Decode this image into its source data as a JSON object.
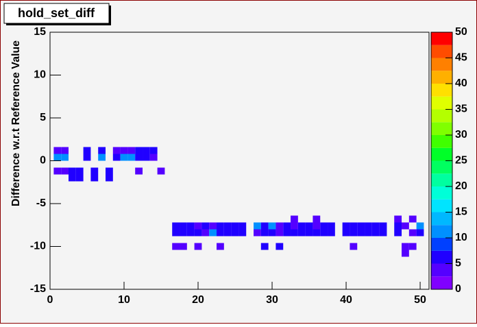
{
  "chart_data": {
    "type": "heatmap",
    "title": "hold_set_diff",
    "ylabel": "Difference w.r.t Reference Value",
    "xlim": [
      0,
      51.2
    ],
    "xticks": [
      0,
      10,
      20,
      30,
      40,
      50
    ],
    "ylim": [
      -15,
      15
    ],
    "yticks": [
      -15,
      -10,
      -5,
      0,
      5,
      10,
      15
    ],
    "zlim": [
      0,
      50
    ],
    "zticks": [
      0,
      5,
      10,
      15,
      20,
      25,
      30,
      35,
      40,
      45,
      50
    ],
    "palette": [
      "#8000ff",
      "#5400ff",
      "#2000ff",
      "#0040ff",
      "#0090ff",
      "#00b8ff",
      "#00e4ff",
      "#00ffd8",
      "#00ffa0",
      "#00ff60",
      "#00ff28",
      "#40ff00",
      "#80ff00",
      "#b4ff00",
      "#e0ff00",
      "#ffe000",
      "#ffb000",
      "#ff8000",
      "#ff4c00",
      "#ff0000"
    ],
    "cells": [
      {
        "x": 1,
        "y": 1.2,
        "z": 3
      },
      {
        "x": 2,
        "y": 1.2,
        "z": 3
      },
      {
        "x": 5,
        "y": 1.2,
        "z": 6
      },
      {
        "x": 7,
        "y": 1.2,
        "z": 6
      },
      {
        "x": 9,
        "y": 1.2,
        "z": 3
      },
      {
        "x": 10,
        "y": 1.2,
        "z": 3
      },
      {
        "x": 11,
        "y": 1.2,
        "z": 3
      },
      {
        "x": 12,
        "y": 1.2,
        "z": 6
      },
      {
        "x": 13,
        "y": 1.2,
        "z": 6
      },
      {
        "x": 14,
        "y": 1.2,
        "z": 6
      },
      {
        "x": 1,
        "y": 0.4,
        "z": 11
      },
      {
        "x": 2,
        "y": 0.4,
        "z": 11
      },
      {
        "x": 5,
        "y": 0.4,
        "z": 6
      },
      {
        "x": 7,
        "y": 0.4,
        "z": 11
      },
      {
        "x": 9,
        "y": 0.4,
        "z": 6
      },
      {
        "x": 10,
        "y": 0.4,
        "z": 11
      },
      {
        "x": 11,
        "y": 0.4,
        "z": 11
      },
      {
        "x": 12,
        "y": 0.4,
        "z": 6
      },
      {
        "x": 13,
        "y": 0.4,
        "z": 6
      },
      {
        "x": 14,
        "y": 0.4,
        "z": 4
      },
      {
        "x": 1,
        "y": -1.2,
        "z": 3
      },
      {
        "x": 2,
        "y": -1.2,
        "z": 3
      },
      {
        "x": 3,
        "y": -1.2,
        "z": 6
      },
      {
        "x": 4,
        "y": -1.2,
        "z": 6
      },
      {
        "x": 6,
        "y": -1.2,
        "z": 6
      },
      {
        "x": 8,
        "y": -1.2,
        "z": 6
      },
      {
        "x": 12,
        "y": -1.2,
        "z": 3
      },
      {
        "x": 15,
        "y": -1.2,
        "z": 3
      },
      {
        "x": 3,
        "y": -2.0,
        "z": 6
      },
      {
        "x": 4,
        "y": -2.0,
        "z": 6
      },
      {
        "x": 6,
        "y": -2.0,
        "z": 6
      },
      {
        "x": 8,
        "y": -2.0,
        "z": 6
      },
      {
        "x": 33,
        "y": -6.8,
        "z": 3
      },
      {
        "x": 36,
        "y": -6.8,
        "z": 3
      },
      {
        "x": 47,
        "y": -6.8,
        "z": 3
      },
      {
        "x": 49,
        "y": -6.8,
        "z": 3
      },
      {
        "x": 17,
        "y": -7.6,
        "z": 6
      },
      {
        "x": 18,
        "y": -7.6,
        "z": 6
      },
      {
        "x": 19,
        "y": -7.6,
        "z": 6
      },
      {
        "x": 20,
        "y": -7.6,
        "z": 4
      },
      {
        "x": 21,
        "y": -7.6,
        "z": 6
      },
      {
        "x": 22,
        "y": -7.6,
        "z": 3
      },
      {
        "x": 23,
        "y": -7.6,
        "z": 6
      },
      {
        "x": 24,
        "y": -7.6,
        "z": 6
      },
      {
        "x": 25,
        "y": -7.6,
        "z": 6
      },
      {
        "x": 26,
        "y": -7.6,
        "z": 6
      },
      {
        "x": 28,
        "y": -7.6,
        "z": 11
      },
      {
        "x": 29,
        "y": -7.6,
        "z": 6
      },
      {
        "x": 30,
        "y": -7.6,
        "z": 11
      },
      {
        "x": 31,
        "y": -7.6,
        "z": 4
      },
      {
        "x": 32,
        "y": -7.6,
        "z": 6
      },
      {
        "x": 33,
        "y": -7.6,
        "z": 3
      },
      {
        "x": 34,
        "y": -7.6,
        "z": 6
      },
      {
        "x": 35,
        "y": -7.6,
        "z": 6
      },
      {
        "x": 36,
        "y": -7.6,
        "z": 4
      },
      {
        "x": 37,
        "y": -7.6,
        "z": 6
      },
      {
        "x": 38,
        "y": -7.6,
        "z": 6
      },
      {
        "x": 40,
        "y": -7.6,
        "z": 6
      },
      {
        "x": 41,
        "y": -7.6,
        "z": 6
      },
      {
        "x": 42,
        "y": -7.6,
        "z": 6
      },
      {
        "x": 43,
        "y": -7.6,
        "z": 6
      },
      {
        "x": 44,
        "y": -7.6,
        "z": 6
      },
      {
        "x": 45,
        "y": -7.6,
        "z": 6
      },
      {
        "x": 47,
        "y": -7.6,
        "z": 6
      },
      {
        "x": 48,
        "y": -7.6,
        "z": 4
      },
      {
        "x": 50,
        "y": -7.6,
        "z": 11
      },
      {
        "x": 17,
        "y": -8.4,
        "z": 6
      },
      {
        "x": 18,
        "y": -8.4,
        "z": 6
      },
      {
        "x": 19,
        "y": -8.4,
        "z": 6
      },
      {
        "x": 20,
        "y": -8.4,
        "z": 6
      },
      {
        "x": 21,
        "y": -8.4,
        "z": 4
      },
      {
        "x": 22,
        "y": -8.4,
        "z": 11
      },
      {
        "x": 23,
        "y": -8.4,
        "z": 6
      },
      {
        "x": 24,
        "y": -8.4,
        "z": 6
      },
      {
        "x": 25,
        "y": -8.4,
        "z": 6
      },
      {
        "x": 26,
        "y": -8.4,
        "z": 6
      },
      {
        "x": 28,
        "y": -8.4,
        "z": 3
      },
      {
        "x": 29,
        "y": -8.4,
        "z": 6
      },
      {
        "x": 30,
        "y": -8.4,
        "z": 6
      },
      {
        "x": 31,
        "y": -8.4,
        "z": 3
      },
      {
        "x": 32,
        "y": -8.4,
        "z": 6
      },
      {
        "x": 33,
        "y": -8.4,
        "z": 6
      },
      {
        "x": 34,
        "y": -8.4,
        "z": 6
      },
      {
        "x": 35,
        "y": -8.4,
        "z": 6
      },
      {
        "x": 36,
        "y": -8.4,
        "z": 6
      },
      {
        "x": 37,
        "y": -8.4,
        "z": 6
      },
      {
        "x": 38,
        "y": -8.4,
        "z": 6
      },
      {
        "x": 40,
        "y": -8.4,
        "z": 6
      },
      {
        "x": 41,
        "y": -8.4,
        "z": 6
      },
      {
        "x": 42,
        "y": -8.4,
        "z": 6
      },
      {
        "x": 43,
        "y": -8.4,
        "z": 6
      },
      {
        "x": 44,
        "y": -8.4,
        "z": 6
      },
      {
        "x": 45,
        "y": -8.4,
        "z": 6
      },
      {
        "x": 47,
        "y": -8.4,
        "z": 6
      },
      {
        "x": 49,
        "y": -8.4,
        "z": 3
      },
      {
        "x": 50,
        "y": -8.4,
        "z": 6
      },
      {
        "x": 17,
        "y": -10.0,
        "z": 3
      },
      {
        "x": 18,
        "y": -10.0,
        "z": 3
      },
      {
        "x": 20,
        "y": -10.0,
        "z": 3
      },
      {
        "x": 23,
        "y": -10.0,
        "z": 3
      },
      {
        "x": 29,
        "y": -10.0,
        "z": 6
      },
      {
        "x": 31,
        "y": -10.0,
        "z": 6
      },
      {
        "x": 41,
        "y": -10.0,
        "z": 3
      },
      {
        "x": 48,
        "y": -10.0,
        "z": 3
      },
      {
        "x": 49,
        "y": -10.0,
        "z": 3
      },
      {
        "x": 48,
        "y": -10.8,
        "z": 3
      }
    ]
  }
}
